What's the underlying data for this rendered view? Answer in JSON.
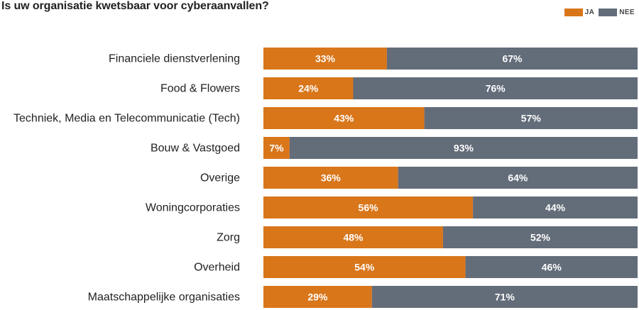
{
  "chart_data": {
    "type": "bar",
    "orientation": "horizontal",
    "stacked": true,
    "title": "Is uw organisatie kwetsbaar voor cyberaanvallen?",
    "xlabel": "",
    "ylabel": "",
    "xlim": [
      0,
      100
    ],
    "legend_position": "top-right",
    "categories": [
      "Financiele dienstverlening",
      "Food & Flowers",
      "Techniek, Media en Telecommunicatie (Tech)",
      "Bouw & Vastgoed",
      "Overige",
      "Woningcorporaties",
      "Zorg",
      "Overheid",
      "Maatschappelijke organisaties"
    ],
    "series": [
      {
        "name": "JA",
        "color": "#d9761a",
        "values": [
          33,
          24,
          43,
          7,
          36,
          56,
          48,
          54,
          29
        ],
        "labels": [
          "33%",
          "24%",
          "43%",
          "7%",
          "36%",
          "56%",
          "48%",
          "54%",
          "29%"
        ]
      },
      {
        "name": "NEE",
        "color": "#636c79",
        "values": [
          67,
          76,
          57,
          93,
          64,
          44,
          52,
          46,
          71
        ],
        "labels": [
          "67%",
          "76%",
          "57%",
          "93%",
          "64%",
          "44%",
          "52%",
          "46%",
          "71%"
        ]
      }
    ]
  }
}
